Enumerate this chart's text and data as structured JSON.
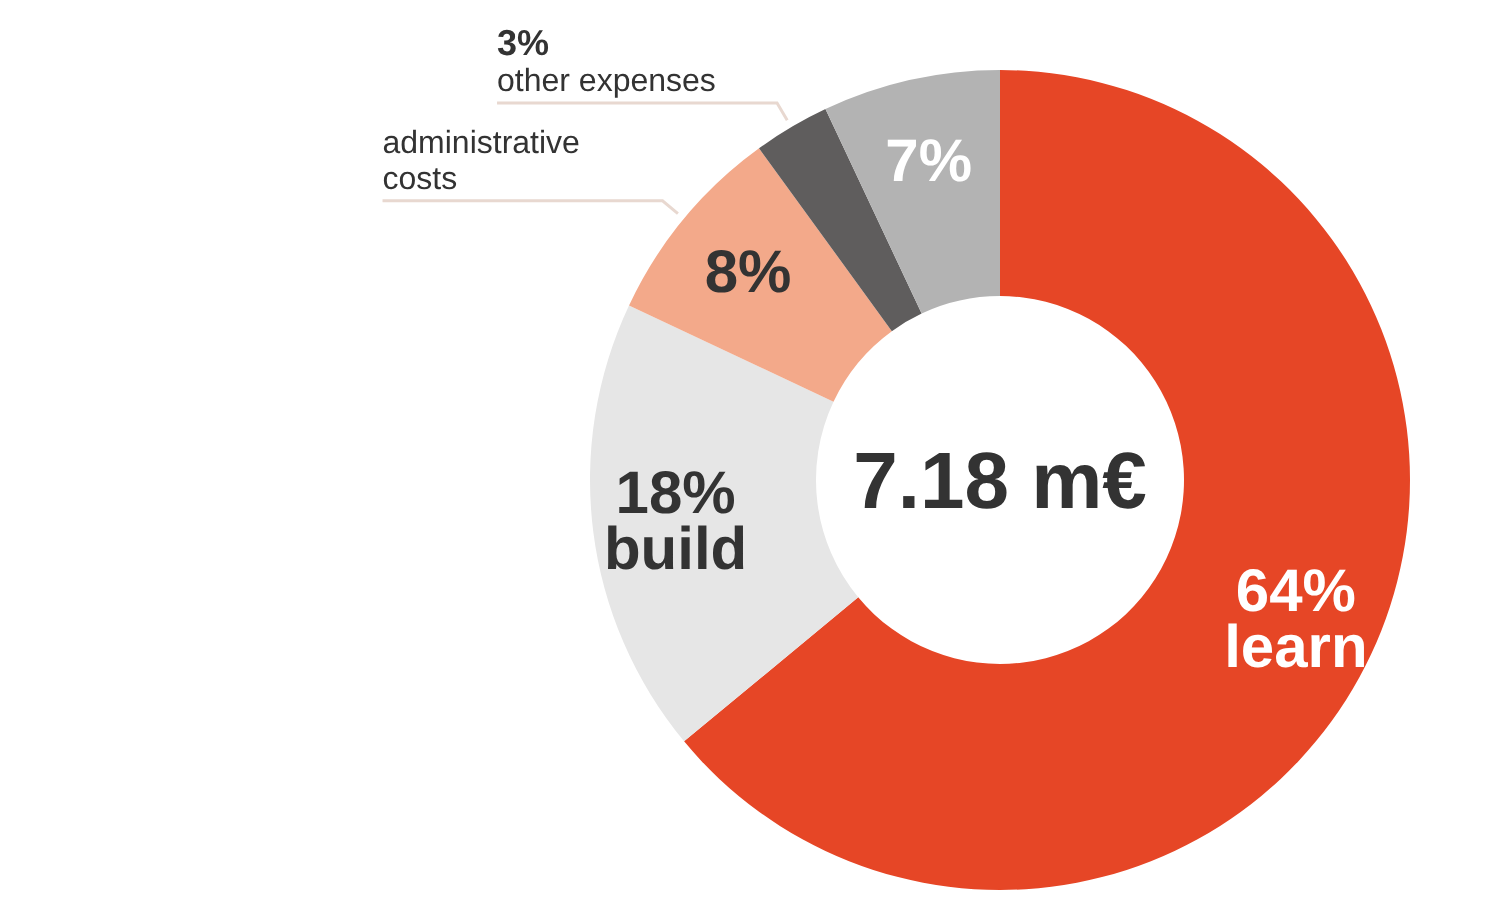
{
  "chart_data": {
    "type": "donut",
    "categories": [
      "learn",
      "build",
      "administrative costs",
      "other expenses",
      null
    ],
    "values": [
      64,
      18,
      8,
      3,
      7
    ],
    "value_labels": [
      "64%",
      "18%",
      "8%",
      "3%",
      "7%"
    ],
    "colors": [
      "#e64626",
      "#e6e6e6",
      "#f3a98a",
      "#5f5d5d",
      "#b3b3b3"
    ],
    "annotations": [
      "7.18 m€"
    ]
  }
}
